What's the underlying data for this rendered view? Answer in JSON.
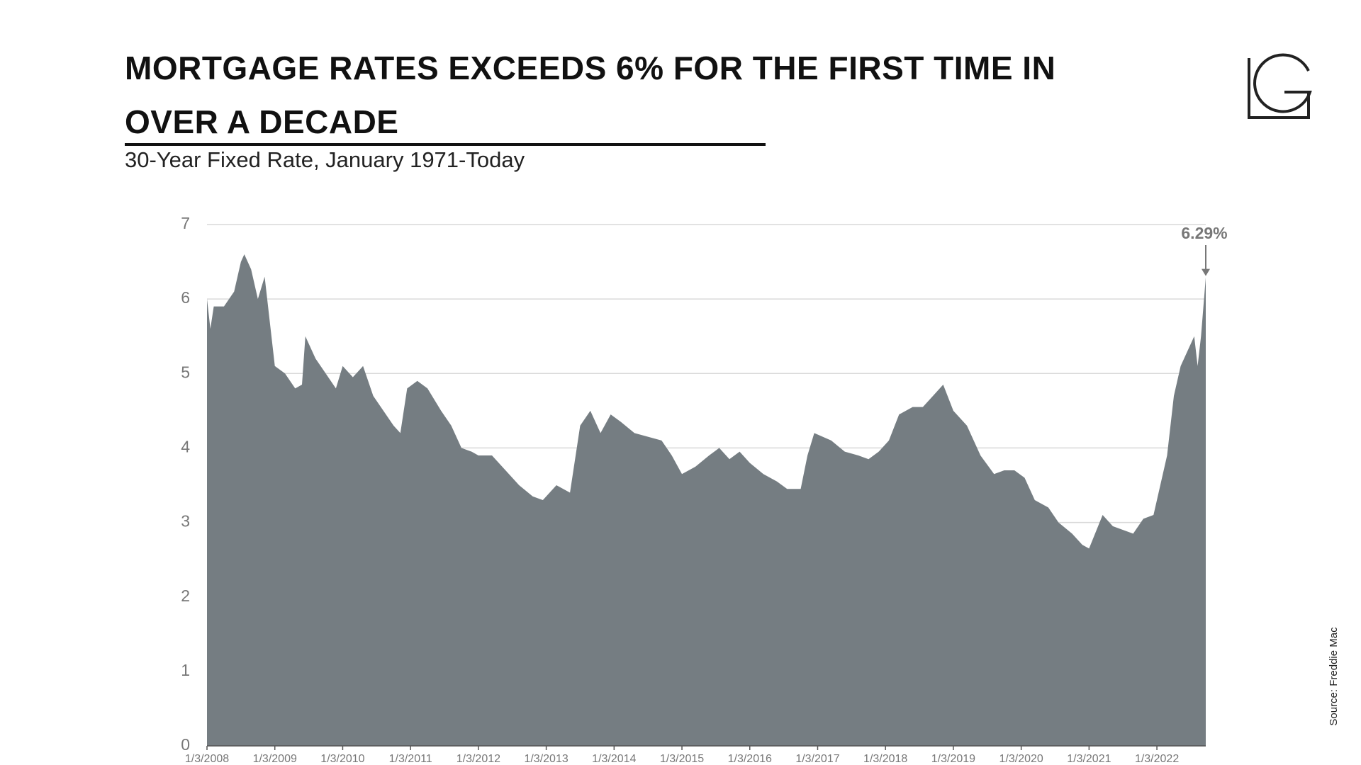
{
  "chart_data": {
    "type": "area",
    "title": "MORTGAGE RATES EXCEEDS 6% FOR THE FIRST TIME IN OVER A DECADE",
    "subtitle": "30-Year Fixed Rate, January 1971-Today",
    "source": "Source: Freddie Mac",
    "color": "#757d82",
    "grid": true,
    "x": [
      2008.0,
      2008.05,
      2008.1,
      2008.25,
      2008.4,
      2008.5,
      2008.55,
      2008.65,
      2008.75,
      2008.85,
      2008.95,
      2009.0,
      2009.15,
      2009.3,
      2009.4,
      2009.45,
      2009.6,
      2009.75,
      2009.9,
      2010.0,
      2010.15,
      2010.3,
      2010.45,
      2010.6,
      2010.75,
      2010.85,
      2010.95,
      2011.1,
      2011.25,
      2011.45,
      2011.6,
      2011.75,
      2011.9,
      2012.0,
      2012.2,
      2012.4,
      2012.6,
      2012.8,
      2012.95,
      2013.15,
      2013.35,
      2013.5,
      2013.65,
      2013.8,
      2013.95,
      2014.1,
      2014.3,
      2014.5,
      2014.7,
      2014.85,
      2015.0,
      2015.2,
      2015.4,
      2015.55,
      2015.7,
      2015.85,
      2016.0,
      2016.2,
      2016.4,
      2016.55,
      2016.75,
      2016.85,
      2016.95,
      2017.2,
      2017.4,
      2017.6,
      2017.75,
      2017.9,
      2018.05,
      2018.2,
      2018.4,
      2018.55,
      2018.7,
      2018.85,
      2019.0,
      2019.2,
      2019.4,
      2019.6,
      2019.75,
      2019.9,
      2020.05,
      2020.2,
      2020.4,
      2020.55,
      2020.75,
      2020.9,
      2021.0,
      2021.2,
      2021.35,
      2021.5,
      2021.65,
      2021.8,
      2021.95,
      2022.05,
      2022.15,
      2022.25,
      2022.35,
      2022.45,
      2022.55,
      2022.6,
      2022.65,
      2022.72
    ],
    "values": [
      6.0,
      5.6,
      5.9,
      5.9,
      6.1,
      6.5,
      6.6,
      6.4,
      6.0,
      6.3,
      5.5,
      5.1,
      5.0,
      4.8,
      4.85,
      5.5,
      5.2,
      5.0,
      4.8,
      5.1,
      4.95,
      5.1,
      4.7,
      4.5,
      4.3,
      4.2,
      4.8,
      4.9,
      4.8,
      4.5,
      4.3,
      4.0,
      3.95,
      3.9,
      3.9,
      3.7,
      3.5,
      3.35,
      3.3,
      3.5,
      3.4,
      4.3,
      4.5,
      4.2,
      4.45,
      4.35,
      4.2,
      4.15,
      4.1,
      3.9,
      3.65,
      3.75,
      3.9,
      4.0,
      3.85,
      3.95,
      3.8,
      3.65,
      3.55,
      3.45,
      3.45,
      3.9,
      4.2,
      4.1,
      3.95,
      3.9,
      3.85,
      3.95,
      4.1,
      4.45,
      4.55,
      4.55,
      4.7,
      4.85,
      4.5,
      4.3,
      3.9,
      3.65,
      3.7,
      3.7,
      3.6,
      3.3,
      3.2,
      3.0,
      2.85,
      2.7,
      2.65,
      3.1,
      2.95,
      2.9,
      2.85,
      3.05,
      3.1,
      3.5,
      3.9,
      4.7,
      5.1,
      5.3,
      5.5,
      5.1,
      5.5,
      6.29
    ],
    "xlim": [
      2008,
      2022.72
    ],
    "xticks": [
      {
        "value": 2008,
        "label": "1/3/2008"
      },
      {
        "value": 2009,
        "label": "1/3/2009"
      },
      {
        "value": 2010,
        "label": "1/3/2010"
      },
      {
        "value": 2011,
        "label": "1/3/2011"
      },
      {
        "value": 2012,
        "label": "1/3/2012"
      },
      {
        "value": 2013,
        "label": "1/3/2013"
      },
      {
        "value": 2014,
        "label": "1/3/2014"
      },
      {
        "value": 2015,
        "label": "1/3/2015"
      },
      {
        "value": 2016,
        "label": "1/3/2016"
      },
      {
        "value": 2017,
        "label": "1/3/2017"
      },
      {
        "value": 2018,
        "label": "1/3/2018"
      },
      {
        "value": 2019,
        "label": "1/3/2019"
      },
      {
        "value": 2020,
        "label": "1/3/2020"
      },
      {
        "value": 2021,
        "label": "1/3/2021"
      },
      {
        "value": 2022,
        "label": "1/3/2022"
      }
    ],
    "ylim": [
      0,
      7
    ],
    "yticks": [
      0,
      1,
      2,
      3,
      4,
      5,
      6,
      7
    ],
    "annotations": [
      {
        "text": "6.29%",
        "x": 2022.72,
        "y": 6.29
      }
    ]
  }
}
